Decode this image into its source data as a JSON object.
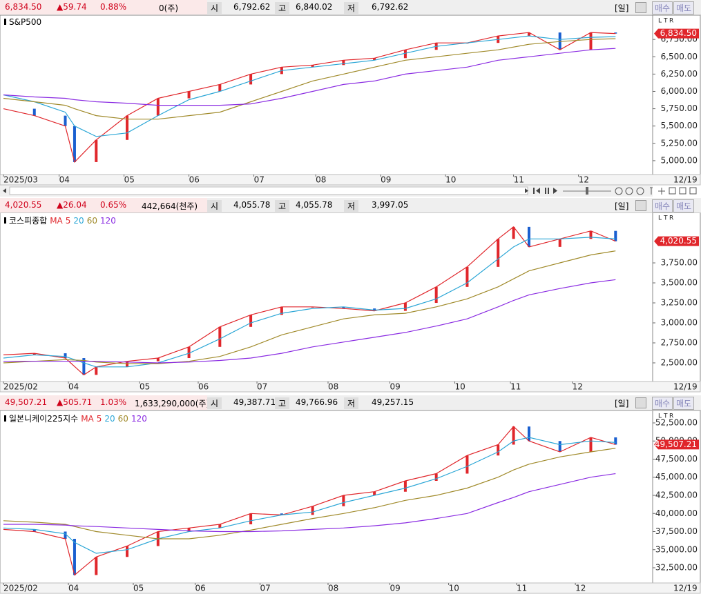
{
  "panels": [
    {
      "header": {
        "price": "6,834.50",
        "change": "▲59.74",
        "rate": "0.88%",
        "volume": "0(주)",
        "open_label": "시",
        "open": "6,792.62",
        "high_label": "고",
        "high": "6,840.02",
        "low_label": "저",
        "low": "6,792.62",
        "period": "[일]",
        "buy": "매수",
        "sell": "매도"
      },
      "chart_data": {
        "type": "candlestick-line",
        "title": "S&P500",
        "corner": [
          "L",
          "T",
          "R"
        ],
        "x": [
          0,
          10,
          20,
          23,
          30,
          40,
          50,
          60,
          70,
          80,
          90,
          100,
          110,
          120,
          130,
          140,
          150,
          160,
          170,
          180,
          190,
          198
        ],
        "xlim": [
          0,
          210
        ],
        "xticks": [
          {
            "value": 0,
            "label": "2025/03"
          },
          {
            "value": 18,
            "label": "04"
          },
          {
            "value": 39,
            "label": "05"
          },
          {
            "value": 60,
            "label": "06"
          },
          {
            "value": 81,
            "label": "07"
          },
          {
            "value": 101,
            "label": "08"
          },
          {
            "value": 122,
            "label": "09"
          },
          {
            "value": 143,
            "label": "10"
          },
          {
            "value": 165,
            "label": "11"
          },
          {
            "value": 186,
            "label": "12"
          }
        ],
        "last_date": "12/19",
        "ylim": [
          4800,
          7100
        ],
        "yticks": [
          {
            "value": 5000,
            "label": "5,000.00"
          },
          {
            "value": 5250,
            "label": "5,250.00"
          },
          {
            "value": 5500,
            "label": "5,500.00"
          },
          {
            "value": 5750,
            "label": "5,750.00"
          },
          {
            "value": 6000,
            "label": "6,000.00"
          },
          {
            "value": 6250,
            "label": "6,250.00"
          },
          {
            "value": 6500,
            "label": "6,500.00"
          },
          {
            "value": 6750,
            "label": "6,750.00"
          }
        ],
        "series": [
          {
            "color": "#e0262b",
            "values": [
              5750,
              5650,
              5500,
              4980,
              5300,
              5650,
              5900,
              6000,
              6100,
              6250,
              6350,
              6380,
              6450,
              6480,
              6600,
              6700,
              6700,
              6800,
              6850,
              6600,
              6850,
              6834.5
            ]
          },
          {
            "color": "#2aa6d6",
            "values": [
              5950,
              5850,
              5700,
              5500,
              5350,
              5400,
              5650,
              5880,
              6000,
              6150,
              6300,
              6350,
              6400,
              6450,
              6550,
              6650,
              6700,
              6750,
              6800,
              6750,
              6780,
              6790
            ]
          },
          {
            "color": "#a08a2a",
            "values": [
              5900,
              5850,
              5800,
              5750,
              5650,
              5600,
              5600,
              5650,
              5700,
              5850,
              6000,
              6150,
              6250,
              6350,
              6450,
              6500,
              6550,
              6600,
              6680,
              6720,
              6750,
              6760
            ]
          },
          {
            "color": "#8a2be2",
            "values": [
              5950,
              5920,
              5900,
              5880,
              5850,
              5830,
              5800,
              5800,
              5800,
              5820,
              5900,
              6000,
              6100,
              6150,
              6250,
              6300,
              6350,
              6450,
              6500,
              6550,
              6600,
              6620
            ]
          }
        ],
        "last_label": "6,834.50"
      }
    },
    {
      "header": {
        "price": "4,020.55",
        "change": "▲26.04",
        "rate": "0.65%",
        "volume": "442,664(천주)",
        "open_label": "시",
        "open": "4,055.78",
        "high_label": "고",
        "high": "4,055.78",
        "low_label": "저",
        "low": "3,997.05",
        "period": "[일]",
        "buy": "매수",
        "sell": "매도"
      },
      "chart_data": {
        "type": "candlestick-line",
        "title": "코스피종합",
        "ma_label": "MA",
        "corner": [
          "L",
          "T",
          "R"
        ],
        "x": [
          0,
          10,
          20,
          26,
          30,
          40,
          50,
          60,
          70,
          80,
          90,
          100,
          110,
          120,
          130,
          140,
          150,
          160,
          165,
          170,
          180,
          190,
          198
        ],
        "xlim": [
          0,
          210
        ],
        "xticks": [
          {
            "value": 0,
            "label": "2025/02"
          },
          {
            "value": 21,
            "label": "04"
          },
          {
            "value": 44,
            "label": "05"
          },
          {
            "value": 63,
            "label": "06"
          },
          {
            "value": 82,
            "label": "07"
          },
          {
            "value": 105,
            "label": "08"
          },
          {
            "value": 125,
            "label": "09"
          },
          {
            "value": 146,
            "label": "10"
          },
          {
            "value": 164,
            "label": "11"
          },
          {
            "value": 184,
            "label": "12"
          }
        ],
        "last_date": "12/19",
        "ylim": [
          2267,
          4380
        ],
        "yticks": [
          {
            "value": 2500,
            "label": "2,500.00"
          },
          {
            "value": 2750,
            "label": "2,750.00"
          },
          {
            "value": 3000,
            "label": "3,000.00"
          },
          {
            "value": 3250,
            "label": "3,250.00"
          },
          {
            "value": 3500,
            "label": "3,500.00"
          },
          {
            "value": 3750,
            "label": "3,750.00"
          }
        ],
        "series": [
          {
            "name": "5",
            "color": "#e0262b",
            "values": [
              2600,
              2620,
              2560,
              2350,
              2450,
              2520,
              2560,
              2700,
              2950,
              3100,
              3200,
              3200,
              3180,
              3150,
              3250,
              3450,
              3700,
              4050,
              4200,
              3950,
              4050,
              4150,
              4020.55
            ]
          },
          {
            "name": "20",
            "color": "#2aa6d6",
            "values": [
              2560,
              2600,
              2580,
              2500,
              2450,
              2450,
              2500,
              2620,
              2800,
              3000,
              3120,
              3180,
              3200,
              3160,
              3180,
              3300,
              3500,
              3800,
              3950,
              4050,
              4050,
              4070,
              4050
            ]
          },
          {
            "name": "60",
            "color": "#a08a2a",
            "values": [
              2500,
              2520,
              2540,
              2530,
              2510,
              2490,
              2490,
              2520,
              2580,
              2700,
              2850,
              2950,
              3050,
              3100,
              3120,
              3200,
              3300,
              3450,
              3550,
              3650,
              3750,
              3850,
              3900
            ]
          },
          {
            "name": "120",
            "color": "#8a2be2",
            "values": [
              2520,
              2520,
              2520,
              2520,
              2520,
              2510,
              2500,
              2510,
              2530,
              2560,
              2620,
              2700,
              2760,
              2820,
              2880,
              2960,
              3050,
              3200,
              3280,
              3350,
              3430,
              3500,
              3540
            ]
          }
        ],
        "last_label": "4,020.55"
      }
    },
    {
      "header": {
        "price": "49,507.21",
        "change": "▲505.71",
        "rate": "1.03%",
        "volume": "1,633,290,000(주)",
        "open_label": "시",
        "open": "49,387.71",
        "high_label": "고",
        "high": "49,766.96",
        "low_label": "저",
        "low": "49,257.15",
        "period": "[일]",
        "buy": "매수",
        "sell": "매도"
      },
      "chart_data": {
        "type": "candlestick-line",
        "title": "일본니케이225지수",
        "ma_label": "MA",
        "corner": [
          "L",
          "T",
          "R"
        ],
        "x": [
          0,
          10,
          20,
          23,
          30,
          40,
          50,
          60,
          70,
          80,
          90,
          100,
          110,
          120,
          130,
          140,
          150,
          160,
          165,
          170,
          180,
          190,
          198
        ],
        "xlim": [
          0,
          210
        ],
        "xticks": [
          {
            "value": 0,
            "label": "2025/02"
          },
          {
            "value": 21,
            "label": "04"
          },
          {
            "value": 42,
            "label": "05"
          },
          {
            "value": 62,
            "label": "06"
          },
          {
            "value": 83,
            "label": "07"
          },
          {
            "value": 105,
            "label": "08"
          },
          {
            "value": 125,
            "label": "09"
          },
          {
            "value": 144,
            "label": "10"
          },
          {
            "value": 166,
            "label": "11"
          },
          {
            "value": 185,
            "label": "12"
          }
        ],
        "last_date": "12/19",
        "ylim": [
          30405,
          54214
        ],
        "yticks": [
          {
            "value": 32500,
            "label": "32,500.00"
          },
          {
            "value": 35000,
            "label": "35,000.00"
          },
          {
            "value": 37500,
            "label": "37,500.00"
          },
          {
            "value": 40000,
            "label": "40,000.00"
          },
          {
            "value": 42500,
            "label": "42,500.00"
          },
          {
            "value": 45000,
            "label": "45,000.00"
          },
          {
            "value": 47500,
            "label": "47,500.00"
          },
          {
            "value": 50000,
            "label": "50,000.00"
          },
          {
            "value": 52500,
            "label": "52,500.00"
          }
        ],
        "series": [
          {
            "name": "5",
            "color": "#e0262b",
            "values": [
              37800,
              37500,
              36500,
              31500,
              34000,
              35500,
              37500,
              38000,
              38500,
              40000,
              39800,
              41000,
              42500,
              43000,
              44500,
              45500,
              48000,
              49500,
              52000,
              50000,
              48500,
              50500,
              49507.21
            ]
          },
          {
            "name": "20",
            "color": "#2aa6d6",
            "values": [
              38000,
              37800,
              37200,
              36000,
              34500,
              35000,
              36500,
              37500,
              38000,
              39000,
              39800,
              40200,
              41500,
              42500,
              43500,
              44800,
              46500,
              48500,
              50000,
              50500,
              49500,
              50000,
              49800
            ]
          },
          {
            "name": "60",
            "color": "#a08a2a",
            "values": [
              39000,
              38800,
              38500,
              38200,
              37500,
              37000,
              36500,
              36500,
              37000,
              37700,
              38500,
              39300,
              40000,
              40800,
              41800,
              42500,
              43500,
              45000,
              46000,
              46800,
              47800,
              48500,
              49000
            ]
          },
          {
            "name": "120",
            "color": "#8a2be2",
            "values": [
              38500,
              38500,
              38400,
              38300,
              38200,
              38000,
              37800,
              37600,
              37500,
              37500,
              37600,
              37800,
              38000,
              38300,
              38700,
              39300,
              40000,
              41500,
              42200,
              43000,
              44000,
              45000,
              45500
            ]
          }
        ],
        "last_label": "49,507.21"
      }
    }
  ]
}
